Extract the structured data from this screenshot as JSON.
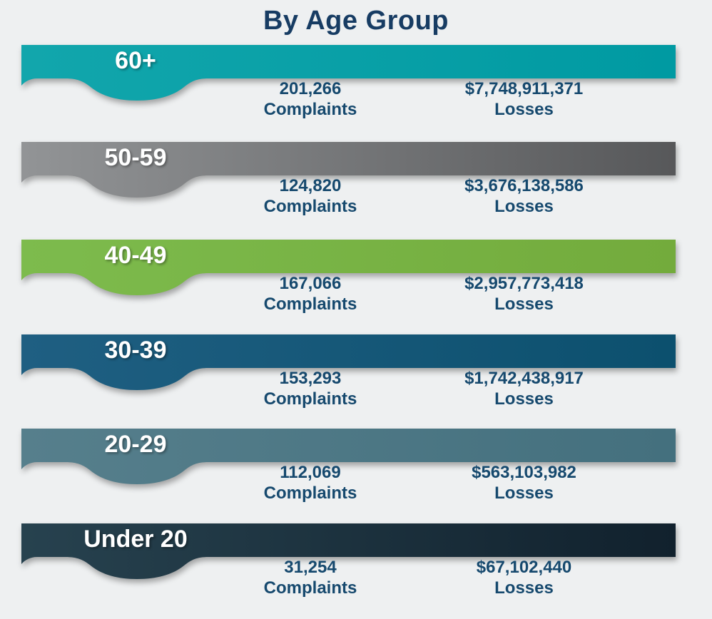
{
  "title": "By Age Group",
  "colors": {
    "background": "#eef0f1",
    "title": "#173c63",
    "stat_text": "#16496e",
    "label_text": "#ffffff"
  },
  "groups": [
    {
      "label": "60+",
      "complaints_value": "201,266",
      "complaints_label": "Complaints",
      "losses_value": "$7,748,911,371",
      "losses_label": "Losses",
      "color_left": "#12a6ac",
      "color_right": "#009aa2"
    },
    {
      "label": "50-59",
      "complaints_value": "124,820",
      "complaints_label": "Complaints",
      "losses_value": "$3,676,138,586",
      "losses_label": "Losses",
      "color_left": "#929496",
      "color_right": "#57585a"
    },
    {
      "label": "40-49",
      "complaints_value": "167,066",
      "complaints_label": "Complaints",
      "losses_value": "$2,957,773,418",
      "losses_label": "Losses",
      "color_left": "#7dbb4d",
      "color_right": "#73ab3c"
    },
    {
      "label": "30-39",
      "complaints_value": "153,293",
      "complaints_label": "Complaints",
      "losses_value": "$1,742,438,917",
      "losses_label": "Losses",
      "color_left": "#1f5f82",
      "color_right": "#0c506e"
    },
    {
      "label": "20-29",
      "complaints_value": "112,069",
      "complaints_label": "Complaints",
      "losses_value": "$563,103,982",
      "losses_label": "Losses",
      "color_left": "#567f8c",
      "color_right": "#44707e"
    },
    {
      "label": "Under 20",
      "complaints_value": "31,254",
      "complaints_label": "Complaints",
      "losses_value": "$67,102,440",
      "losses_label": "Losses",
      "color_left": "#27424f",
      "color_right": "#11212d"
    }
  ],
  "chart_data": {
    "type": "table",
    "title": "By Age Group",
    "categories": [
      "60+",
      "50-59",
      "40-49",
      "30-39",
      "20-29",
      "Under 20"
    ],
    "series": [
      {
        "name": "Complaints",
        "values": [
          201266,
          124820,
          167066,
          153293,
          112069,
          31254
        ]
      },
      {
        "name": "Losses ($)",
        "values": [
          7748911371,
          3676138586,
          2957773418,
          1742438917,
          563103982,
          67102440
        ]
      }
    ],
    "legend_position": "none",
    "grid": false
  }
}
